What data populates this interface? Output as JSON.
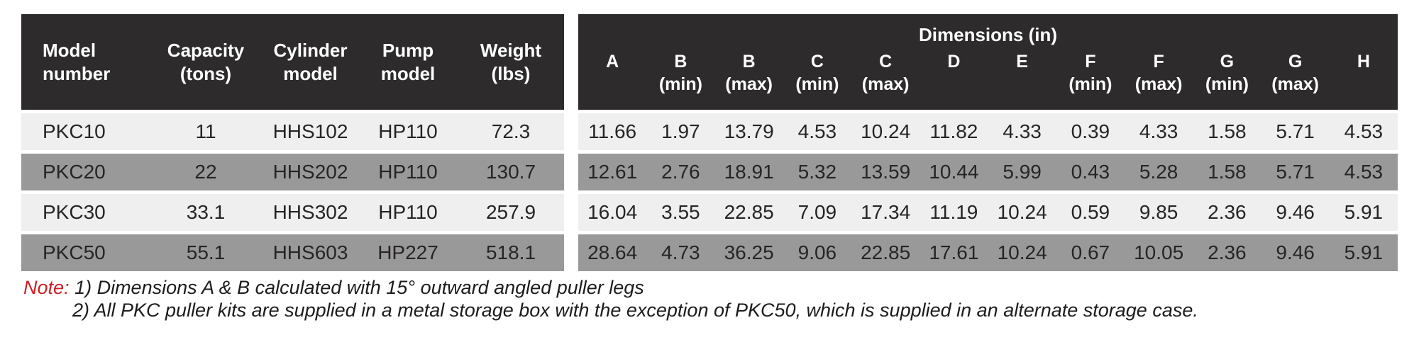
{
  "colors": {
    "header_bg": "#2d2b2c",
    "row_light": "#f0eff0",
    "row_dark": "#9a999a",
    "header_text": "#ffffff",
    "cell_text": "#262425",
    "note_red": "#cb2026",
    "note_text": "#1d1b1c"
  },
  "left_table": {
    "headers": [
      {
        "line1": "Model",
        "line2": "number"
      },
      {
        "line1": "Capacity",
        "line2": "(tons)"
      },
      {
        "line1": "Cylinder",
        "line2": "model"
      },
      {
        "line1": "Pump",
        "line2": "model"
      },
      {
        "line1": "Weight",
        "line2": "(lbs)"
      }
    ],
    "rows": [
      [
        "PKC10",
        "11",
        "HHS102",
        "HP110",
        "72.3"
      ],
      [
        "PKC20",
        "22",
        "HHS202",
        "HP110",
        "130.7"
      ],
      [
        "PKC30",
        "33.1",
        "HHS302",
        "HP110",
        "257.9"
      ],
      [
        "PKC50",
        "55.1",
        "HHS603",
        "HP227",
        "518.1"
      ]
    ]
  },
  "right_table": {
    "group_header": "Dimensions (in)",
    "headers": [
      {
        "letter": "A",
        "sub": ""
      },
      {
        "letter": "B",
        "sub": "(min)"
      },
      {
        "letter": "B",
        "sub": "(max)"
      },
      {
        "letter": "C",
        "sub": "(min)"
      },
      {
        "letter": "C",
        "sub": "(max)"
      },
      {
        "letter": "D",
        "sub": ""
      },
      {
        "letter": "E",
        "sub": ""
      },
      {
        "letter": "F",
        "sub": "(min)"
      },
      {
        "letter": "F",
        "sub": "(max)"
      },
      {
        "letter": "G",
        "sub": "(min)"
      },
      {
        "letter": "G",
        "sub": "(max)"
      },
      {
        "letter": "H",
        "sub": ""
      }
    ],
    "rows": [
      [
        "11.66",
        "1.97",
        "13.79",
        "4.53",
        "10.24",
        "11.82",
        "4.33",
        "0.39",
        "4.33",
        "1.58",
        "5.71",
        "4.53"
      ],
      [
        "12.61",
        "2.76",
        "18.91",
        "5.32",
        "13.59",
        "10.44",
        "5.99",
        "0.43",
        "5.28",
        "1.58",
        "5.71",
        "4.53"
      ],
      [
        "16.04",
        "3.55",
        "22.85",
        "7.09",
        "17.34",
        "11.19",
        "10.24",
        "0.59",
        "9.85",
        "2.36",
        "9.46",
        "5.91"
      ],
      [
        "28.64",
        "4.73",
        "36.25",
        "9.06",
        "22.85",
        "17.61",
        "10.24",
        "0.67",
        "10.05",
        "2.36",
        "9.46",
        "5.91"
      ]
    ]
  },
  "note": {
    "label": "Note:",
    "line1": "1) Dimensions A & B calculated with 15° outward angled puller legs",
    "line2": "2) All PKC puller kits are supplied in a metal storage box with the exception of PKC50, which is supplied in an alternate storage case."
  }
}
